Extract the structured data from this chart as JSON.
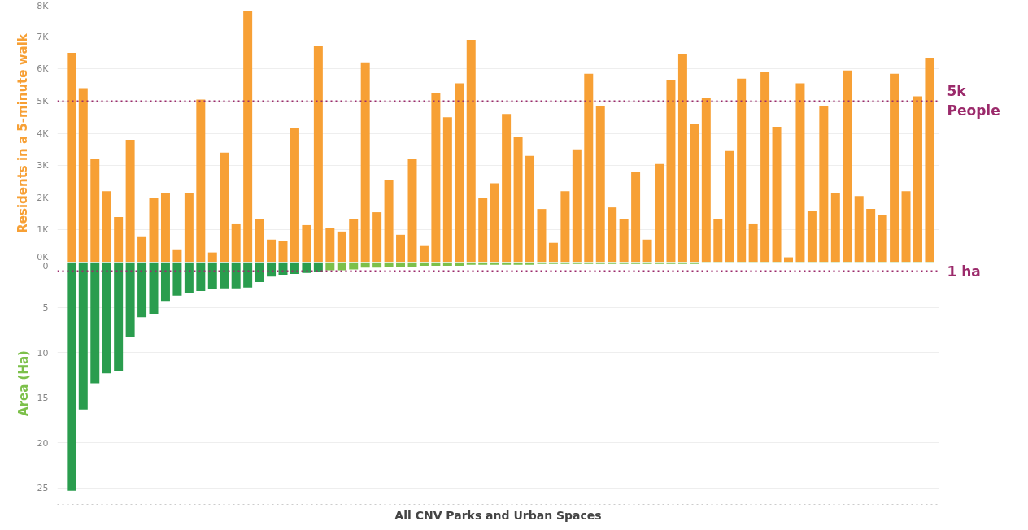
{
  "chart_data": [
    {
      "type": "bar",
      "ylabel": "Residents in a 5-minute walk",
      "categories": [
        null,
        null,
        null,
        null,
        null,
        null,
        null,
        null,
        null,
        null,
        null,
        null,
        null,
        null,
        null,
        null,
        null,
        null,
        null,
        null,
        null,
        null,
        null,
        null,
        null,
        null,
        null,
        null,
        null,
        null,
        null,
        null,
        null,
        null,
        null,
        null,
        null,
        null,
        null,
        null,
        null,
        null,
        null,
        null,
        null,
        null,
        null,
        null,
        null,
        null,
        null,
        null,
        null,
        null,
        null,
        null,
        null,
        null,
        null,
        null,
        null,
        null,
        null,
        null,
        null,
        null,
        null,
        null,
        null,
        null,
        null,
        null,
        null,
        null
      ],
      "values": [
        6500,
        5400,
        3200,
        2200,
        1400,
        3800,
        800,
        2000,
        2150,
        400,
        2150,
        5050,
        300,
        3400,
        1200,
        7800,
        1350,
        700,
        650,
        4150,
        1150,
        6700,
        1050,
        950,
        1350,
        6200,
        1550,
        2550,
        850,
        3200,
        500,
        5250,
        4500,
        5550,
        6900,
        2000,
        2450,
        4600,
        3900,
        3300,
        1650,
        600,
        2200,
        3500,
        5850,
        4850,
        1700,
        1350,
        2800,
        700,
        3050,
        5650,
        6450,
        4300,
        5100,
        1350,
        3450,
        5700,
        1200,
        5900,
        4200,
        150,
        5550,
        1600,
        4850,
        2150,
        5950,
        2050,
        1650,
        1450,
        5850,
        2200,
        5150,
        6350
      ],
      "color": "#f7a035",
      "ylim": [
        0,
        8000
      ],
      "yticks": [
        {
          "value": 0,
          "label": "0K"
        },
        {
          "value": 1000,
          "label": "1K"
        },
        {
          "value": 2000,
          "label": "2K"
        },
        {
          "value": 3000,
          "label": "3K"
        },
        {
          "value": 4000,
          "label": "4K"
        },
        {
          "value": 5000,
          "label": "5K"
        },
        {
          "value": 6000,
          "label": "6K"
        },
        {
          "value": 7000,
          "label": "7K"
        },
        {
          "value": 8000,
          "label": "8K"
        }
      ],
      "grid": "y",
      "tick_labels": "y",
      "ref_lines": [
        {
          "axis": "y",
          "value": 5000,
          "label": "5k\nPeople",
          "color": "#9b2a6b",
          "line_style": "dotted"
        }
      ]
    },
    {
      "type": "bar",
      "ylabel": "Area (Ha)",
      "xlabel": "All CNV Parks and Urban Spaces",
      "categories": [
        null,
        null,
        null,
        null,
        null,
        null,
        null,
        null,
        null,
        null,
        null,
        null,
        null,
        null,
        null,
        null,
        null,
        null,
        null,
        null,
        null,
        null,
        null,
        null,
        null,
        null,
        null,
        null,
        null,
        null,
        null,
        null,
        null,
        null,
        null,
        null,
        null,
        null,
        null,
        null,
        null,
        null,
        null,
        null,
        null,
        null,
        null,
        null,
        null,
        null,
        null,
        null,
        null,
        null,
        null,
        null,
        null,
        null,
        null,
        null,
        null,
        null,
        null,
        null,
        null,
        null,
        null,
        null,
        null,
        null,
        null,
        null,
        null,
        null
      ],
      "values": [
        25.3,
        16.3,
        13.4,
        12.3,
        12.1,
        8.3,
        6.1,
        5.7,
        4.3,
        3.7,
        3.4,
        3.2,
        3.0,
        2.9,
        2.9,
        2.8,
        2.2,
        1.6,
        1.4,
        1.3,
        1.2,
        1.1,
        0.9,
        0.9,
        0.8,
        0.6,
        0.6,
        0.5,
        0.5,
        0.5,
        0.4,
        0.4,
        0.4,
        0.4,
        0.3,
        0.3,
        0.3,
        0.3,
        0.3,
        0.3,
        0.2,
        0.2,
        0.2,
        0.2,
        0.2,
        0.2,
        0.2,
        0.2,
        0.2,
        0.2,
        0.2,
        0.2,
        0.2,
        0.2,
        0.1,
        0.1,
        0.1,
        0.1,
        0.1,
        0.1,
        0.1,
        0.1,
        0.1,
        0.1,
        0.1,
        0.1,
        0.1,
        0.1,
        0.1,
        0.1,
        0.1,
        0.1,
        0.1,
        0.1
      ],
      "colors": [
        "#2a9d4e",
        "#2a9d4e",
        "#2a9d4e",
        "#2a9d4e",
        "#2a9d4e",
        "#2a9d4e",
        "#2a9d4e",
        "#2a9d4e",
        "#2a9d4e",
        "#2a9d4e",
        "#2a9d4e",
        "#2a9d4e",
        "#2a9d4e",
        "#2a9d4e",
        "#2a9d4e",
        "#2a9d4e",
        "#2a9d4e",
        "#2a9d4e",
        "#2a9d4e",
        "#2a9d4e",
        "#2a9d4e",
        "#2a9d4e",
        "#7cc04a",
        "#7cc04a",
        "#7cc04a",
        "#7cc04a",
        "#7cc04a",
        "#7cc04a",
        "#7cc04a",
        "#7cc04a",
        "#7cc04a",
        "#7cc04a",
        "#7cc04a",
        "#7cc04a",
        "#7cc04a",
        "#7cc04a",
        "#7cc04a",
        "#7cc04a",
        "#7cc04a",
        "#7cc04a",
        "#7cc04a",
        "#7cc04a",
        "#7cc04a",
        "#7cc04a",
        "#7cc04a",
        "#7cc04a",
        "#7cc04a",
        "#7cc04a",
        "#7cc04a",
        "#7cc04a",
        "#7cc04a",
        "#7cc04a",
        "#7cc04a",
        "#7cc04a",
        "#7cc04a",
        "#7cc04a",
        "#7cc04a",
        "#7cc04a",
        "#7cc04a",
        "#7cc04a",
        "#7cc04a",
        "#7cc04a",
        "#7cc04a",
        "#7cc04a",
        "#7cc04a",
        "#7cc04a",
        "#7cc04a",
        "#7cc04a",
        "#7cc04a",
        "#7cc04a",
        "#7cc04a",
        "#7cc04a",
        "#7cc04a",
        "#7cc04a"
      ],
      "ylim": [
        26.8,
        0
      ],
      "yticks": [
        0,
        5,
        10,
        15,
        20,
        25
      ],
      "grid": "y",
      "tick_labels": "y",
      "ref_lines": [
        {
          "axis": "y",
          "value": 1,
          "label": "1 ha",
          "color": "#9b2a6b",
          "line_style": "dotted"
        }
      ]
    }
  ]
}
